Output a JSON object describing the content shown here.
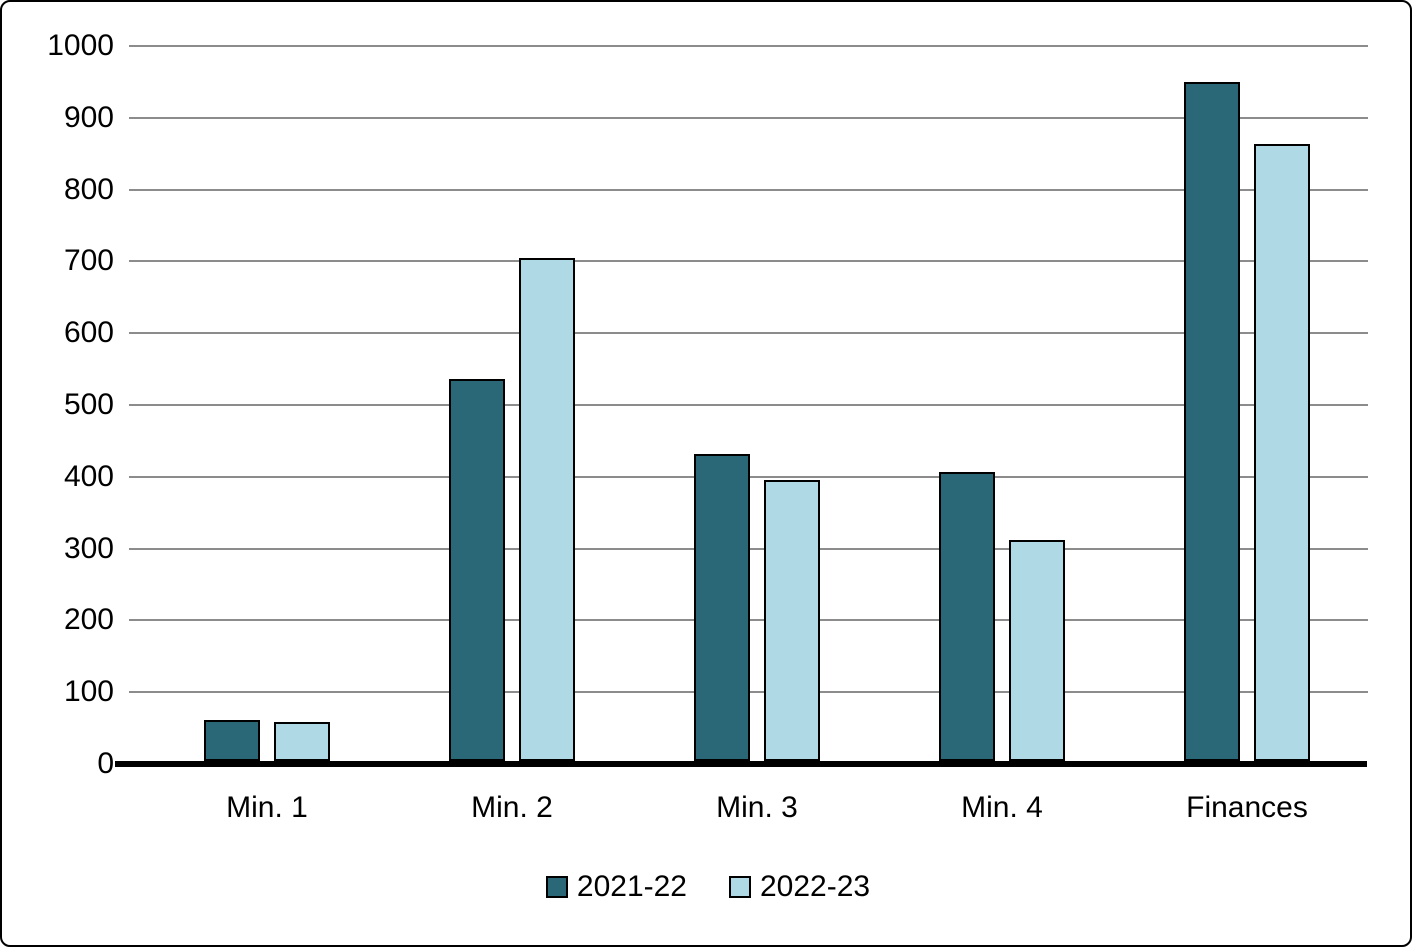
{
  "chart_data": {
    "type": "bar",
    "title": "",
    "xlabel": "",
    "ylabel": "",
    "categories": [
      "Min. 1",
      "Min. 2",
      "Min. 3",
      "Min. 4",
      "Finances"
    ],
    "series": [
      {
        "name": "2021-22",
        "color": "#2A6878",
        "values": [
          57,
          532,
          428,
          403,
          945
        ]
      },
      {
        "name": "2022-23",
        "color": "#AED9E5",
        "values": [
          54,
          700,
          392,
          308,
          860
        ]
      }
    ],
    "ylim": [
      0,
      1000
    ],
    "ytick_step": 100,
    "yticks": [
      "0",
      "100",
      "200",
      "300",
      "400",
      "500",
      "600",
      "700",
      "800",
      "900",
      "1000"
    ],
    "grid": true,
    "legend_position": "bottom",
    "colors": {
      "background": "#FFFFFF",
      "gridline": "#8C8C8C",
      "axis_line": "#000000",
      "text": "#000000",
      "bar_border": "#000000"
    }
  }
}
